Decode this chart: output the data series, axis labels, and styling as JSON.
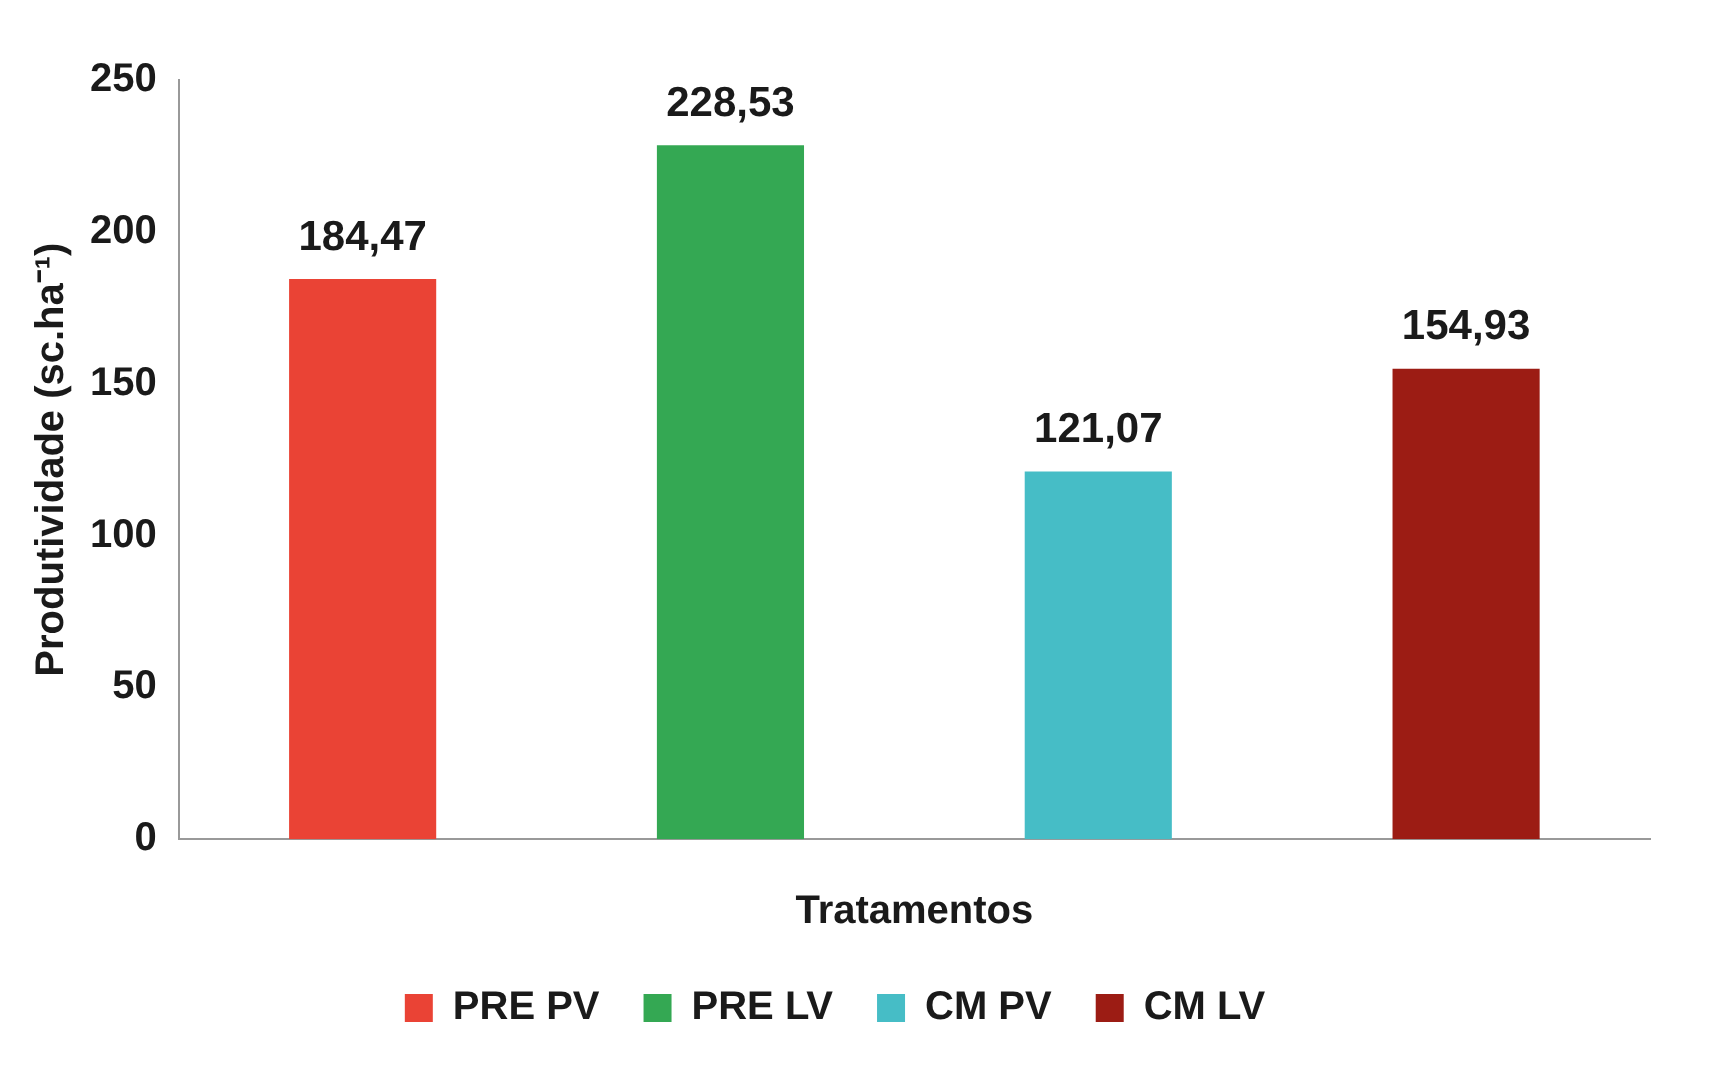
{
  "chart_data": {
    "type": "bar",
    "xlabel": "Tratamentos",
    "ylabel": "Produtividade (sc.ha⁻¹)",
    "categories": [
      null
    ],
    "series": [
      {
        "name": "PRE PV",
        "color": "#ea4335",
        "values": [
          184.47
        ],
        "value_labels": [
          "184,47"
        ]
      },
      {
        "name": "PRE LV",
        "color": "#34a853",
        "values": [
          228.53
        ],
        "value_labels": [
          "228,53"
        ]
      },
      {
        "name": "CM PV",
        "color": "#46bdc6",
        "values": [
          121.07
        ],
        "value_labels": [
          "121,07"
        ]
      },
      {
        "name": "CM LV",
        "color": "#9c1c14",
        "values": [
          154.93
        ],
        "value_labels": [
          "154,93"
        ]
      }
    ],
    "ylim": [
      0,
      250
    ],
    "yticks": [
      0,
      50,
      100,
      150,
      200,
      250
    ],
    "grid": false,
    "legend": "bottom"
  }
}
